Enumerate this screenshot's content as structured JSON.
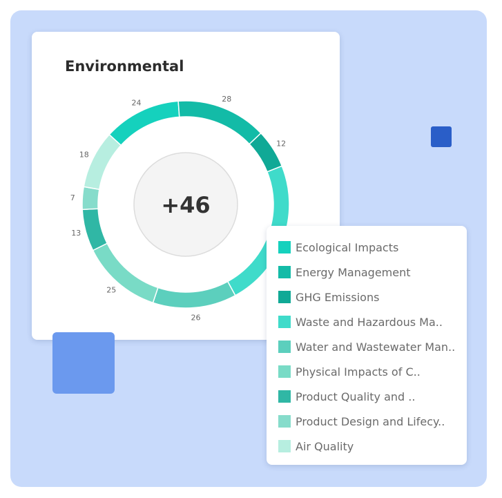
{
  "card": {
    "title": "Environmental"
  },
  "center": {
    "value": "+46"
  },
  "chart_data": {
    "type": "pie",
    "variant": "donut",
    "title": "Environmental",
    "center_label": "+46",
    "categories": [
      "Ecological Impacts",
      "Energy Management",
      "GHG Emissions",
      "Waste and Hazardous Ma..",
      "Water and Wastewater Man..",
      "Physical Impacts of C..",
      "Product Quality and ..",
      "Product Design and Lifecy..",
      "Air Quality"
    ],
    "values": [
      24,
      28,
      12,
      46,
      26,
      25,
      13,
      7,
      18
    ],
    "colors": [
      "#15d1bd",
      "#13bba7",
      "#10a996",
      "#3fdbca",
      "#5ccfbd",
      "#79dbc6",
      "#30b7a5",
      "#86dccb",
      "#b7eee0"
    ],
    "data_labels": [
      "24",
      "28",
      "12",
      "",
      "26",
      "25",
      "13",
      "7",
      "18"
    ],
    "start_category": "GHG Emissions",
    "direction": "clockwise",
    "legend_position": "bottom-right"
  },
  "legend": {
    "items": [
      "Ecological Impacts",
      "Energy Management",
      "GHG Emissions",
      "Waste and Hazardous Ma..",
      "Water and Wastewater Man..",
      "Physical Impacts of C..",
      "Product Quality and ..",
      "Product Design and Lifecy..",
      "Air Quality"
    ]
  }
}
